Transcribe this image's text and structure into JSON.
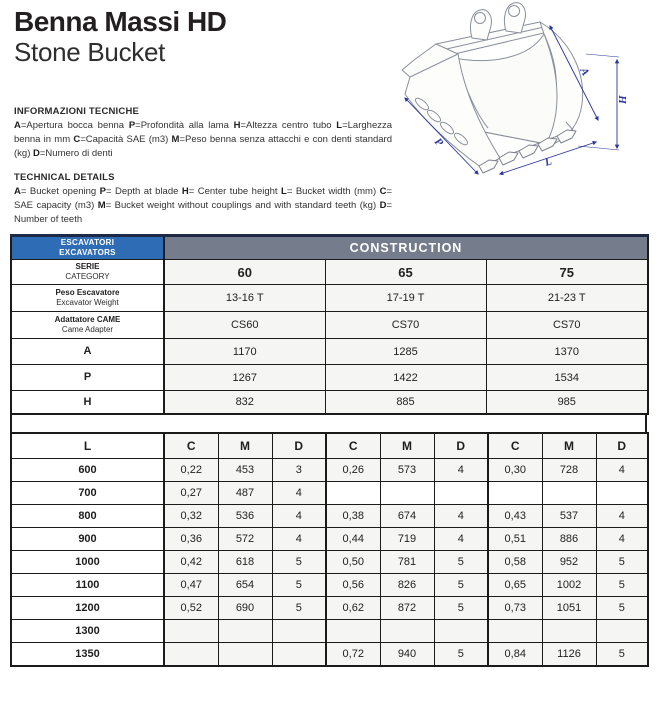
{
  "header": {
    "title": "Benna Massi HD",
    "subtitle": "Stone Bucket"
  },
  "info_it": {
    "heading": "INFORMAZIONI TECNICHE",
    "segments": [
      {
        "text": "A",
        "bold": true
      },
      {
        "text": "=Apertura bocca benna ",
        "bold": false
      },
      {
        "text": "P",
        "bold": true
      },
      {
        "text": "=Profondità alla lama ",
        "bold": false
      },
      {
        "text": "H",
        "bold": true
      },
      {
        "text": "=Altezza centro tubo ",
        "bold": false
      },
      {
        "text": "L",
        "bold": true
      },
      {
        "text": "=Larghezza benna in mm ",
        "bold": false
      },
      {
        "text": "C",
        "bold": true
      },
      {
        "text": "=Capacità SAE (m3) ",
        "bold": false
      },
      {
        "text": "M",
        "bold": true
      },
      {
        "text": "=Peso benna senza attacchi e con denti standard (kg) ",
        "bold": false
      },
      {
        "text": "D",
        "bold": true
      },
      {
        "text": "=Numero di denti",
        "bold": false
      }
    ]
  },
  "info_en": {
    "heading": "TECHNICAL DETAILS",
    "segments": [
      {
        "text": "A",
        "bold": true
      },
      {
        "text": "= Bucket opening ",
        "bold": false
      },
      {
        "text": "P",
        "bold": true
      },
      {
        "text": "= Depth at blade ",
        "bold": false
      },
      {
        "text": "H",
        "bold": true
      },
      {
        "text": "= Center tube height ",
        "bold": false
      },
      {
        "text": "L",
        "bold": true
      },
      {
        "text": "= Bucket width (mm) ",
        "bold": false
      },
      {
        "text": "C",
        "bold": true
      },
      {
        "text": "= SAE capacity (m3) ",
        "bold": false
      },
      {
        "text": "M",
        "bold": true
      },
      {
        "text": "= Bucket weight without couplings and with standard teeth (kg) ",
        "bold": false
      },
      {
        "text": "D",
        "bold": true
      },
      {
        "text": "= Number of teeth",
        "bold": false
      }
    ]
  },
  "drawing": {
    "dim_a": "A",
    "dim_h": "H",
    "dim_p": "P",
    "dim_l": "L"
  },
  "spec_table": {
    "corner_line1": "ESCAVATORI",
    "corner_line2": "EXCAVATORS",
    "construction_label": "CONSTRUCTION",
    "rows": [
      {
        "label1": "SERIE",
        "label2": "CATEGORY",
        "values": [
          "60",
          "65",
          "75"
        ],
        "bold_values": true
      },
      {
        "label1": "Peso Escavatore",
        "label2": "Excavator Weight",
        "values": [
          "13-16 T",
          "17-19 T",
          "21-23 T"
        ]
      },
      {
        "label1": "Adattatore CAME",
        "label2": "Came Adapter",
        "values": [
          "CS60",
          "CS70",
          "CS70"
        ]
      },
      {
        "label1": "A",
        "values": [
          "1170",
          "1285",
          "1370"
        ],
        "letter": true
      },
      {
        "label1": "P",
        "values": [
          "1267",
          "1422",
          "1534"
        ],
        "letter": true
      },
      {
        "label1": "H",
        "values": [
          "832",
          "885",
          "985"
        ],
        "letter": true
      }
    ]
  },
  "dims_table": {
    "l_header": "L",
    "group_headers": [
      "C",
      "M",
      "D",
      "C",
      "M",
      "D",
      "C",
      "M",
      "D"
    ],
    "rows": [
      {
        "l": "600",
        "cells": [
          "0,22",
          "453",
          "3",
          "0,26",
          "573",
          "4",
          "0,30",
          "728",
          "4"
        ]
      },
      {
        "l": "700",
        "cells": [
          "0,27",
          "487",
          "4",
          "",
          "",
          "",
          "",
          "",
          ""
        ],
        "white_when_empty": true
      },
      {
        "l": "800",
        "cells": [
          "0,32",
          "536",
          "4",
          "0,38",
          "674",
          "4",
          "0,43",
          "537",
          "4"
        ]
      },
      {
        "l": "900",
        "cells": [
          "0,36",
          "572",
          "4",
          "0,44",
          "719",
          "4",
          "0,51",
          "886",
          "4"
        ]
      },
      {
        "l": "1000",
        "cells": [
          "0,42",
          "618",
          "5",
          "0,50",
          "781",
          "5",
          "0,58",
          "952",
          "5"
        ]
      },
      {
        "l": "1100",
        "cells": [
          "0,47",
          "654",
          "5",
          "0,56",
          "826",
          "5",
          "0,65",
          "1002",
          "5"
        ]
      },
      {
        "l": "1200",
        "cells": [
          "0,52",
          "690",
          "5",
          "0,62",
          "872",
          "5",
          "0,73",
          "1051",
          "5"
        ]
      },
      {
        "l": "1300",
        "cells": [
          "",
          "",
          "",
          "",
          "",
          "",
          "",
          "",
          ""
        ]
      },
      {
        "l": "1350",
        "cells": [
          "",
          "",
          "",
          "0,72",
          "940",
          "5",
          "0,84",
          "1126",
          "5"
        ]
      }
    ]
  },
  "colors": {
    "accent_blue": "#2e6cb5",
    "construction_slate": "#757d8c",
    "table_top_navy": "#1d2945",
    "cell_gray": "#f5f5f3",
    "dimension_blue": "#2b35a0"
  }
}
